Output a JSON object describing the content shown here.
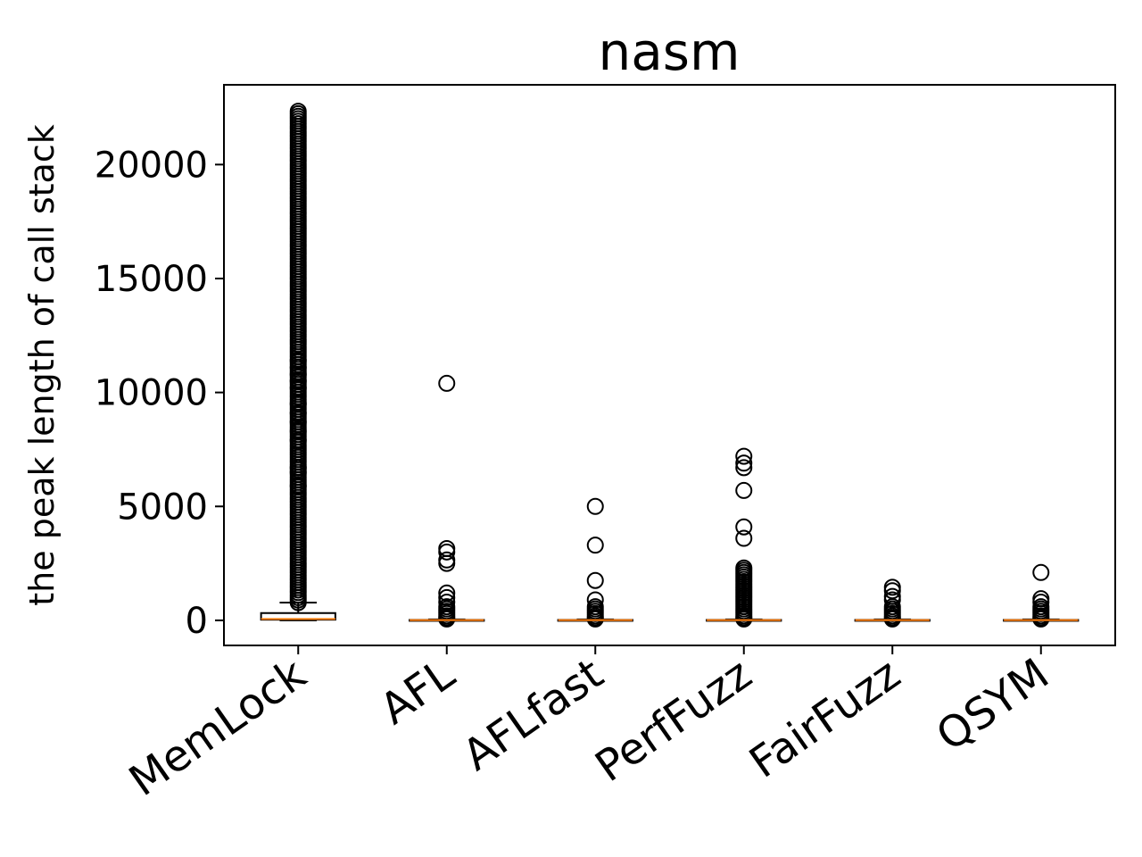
{
  "chart_data": {
    "type": "boxplot",
    "title": "nasm",
    "xlabel": "",
    "ylabel": "the peak length of call stack",
    "ylim": [
      -1100,
      23500
    ],
    "yticks": [
      0,
      5000,
      10000,
      15000,
      20000
    ],
    "ytick_labels": [
      "0",
      "5000",
      "10000",
      "15000",
      "20000"
    ],
    "categories": [
      "MemLock",
      "AFL",
      "AFLfast",
      "PerfFuzz",
      "FairFuzz",
      "QSYM"
    ],
    "grid": false,
    "colors": {
      "box": "#000000",
      "median": "#ff7f0e",
      "outlier": "#000000"
    },
    "boxes": [
      {
        "name": "MemLock",
        "whisker_low": 0,
        "q1": 30,
        "median": 60,
        "q3": 320,
        "whisker_high": 780,
        "outlier_range": [
          780,
          22400
        ],
        "outliers": [
          5900,
          6500,
          6700,
          7900,
          8300,
          8700,
          9100,
          9500,
          10200,
          10500,
          10800,
          11100,
          11400
        ]
      },
      {
        "name": "AFL",
        "whisker_low": 0,
        "q1": 5,
        "median": 10,
        "q3": 20,
        "whisker_high": 40,
        "outliers": [
          60,
          120,
          200,
          300,
          400,
          500,
          600,
          800,
          1000,
          1200,
          2500,
          2650,
          3000,
          3150,
          10400
        ]
      },
      {
        "name": "AFLfast",
        "whisker_low": 0,
        "q1": 5,
        "median": 10,
        "q3": 20,
        "whisker_high": 40,
        "outliers": [
          60,
          120,
          200,
          300,
          400,
          500,
          600,
          900,
          1750,
          3300,
          5000
        ]
      },
      {
        "name": "PerfFuzz",
        "whisker_low": 0,
        "q1": 5,
        "median": 10,
        "q3": 20,
        "whisker_high": 40,
        "outliers": [
          60,
          120,
          200,
          300,
          400,
          500,
          600,
          700,
          800,
          900,
          1000,
          1100,
          1200,
          1300,
          1400,
          1500,
          1600,
          1700,
          1800,
          1900,
          2000,
          2100,
          2200,
          2300,
          3600,
          4100,
          5700,
          6700,
          6900,
          7200
        ]
      },
      {
        "name": "FairFuzz",
        "whisker_low": 0,
        "q1": 5,
        "median": 10,
        "q3": 20,
        "whisker_high": 40,
        "outliers": [
          60,
          120,
          200,
          300,
          400,
          500,
          600,
          900,
          1050,
          1300,
          1450
        ]
      },
      {
        "name": "QSYM",
        "whisker_low": 0,
        "q1": 5,
        "median": 10,
        "q3": 20,
        "whisker_high": 40,
        "outliers": [
          60,
          120,
          200,
          300,
          400,
          500,
          600,
          800,
          950,
          2100
        ]
      }
    ]
  }
}
